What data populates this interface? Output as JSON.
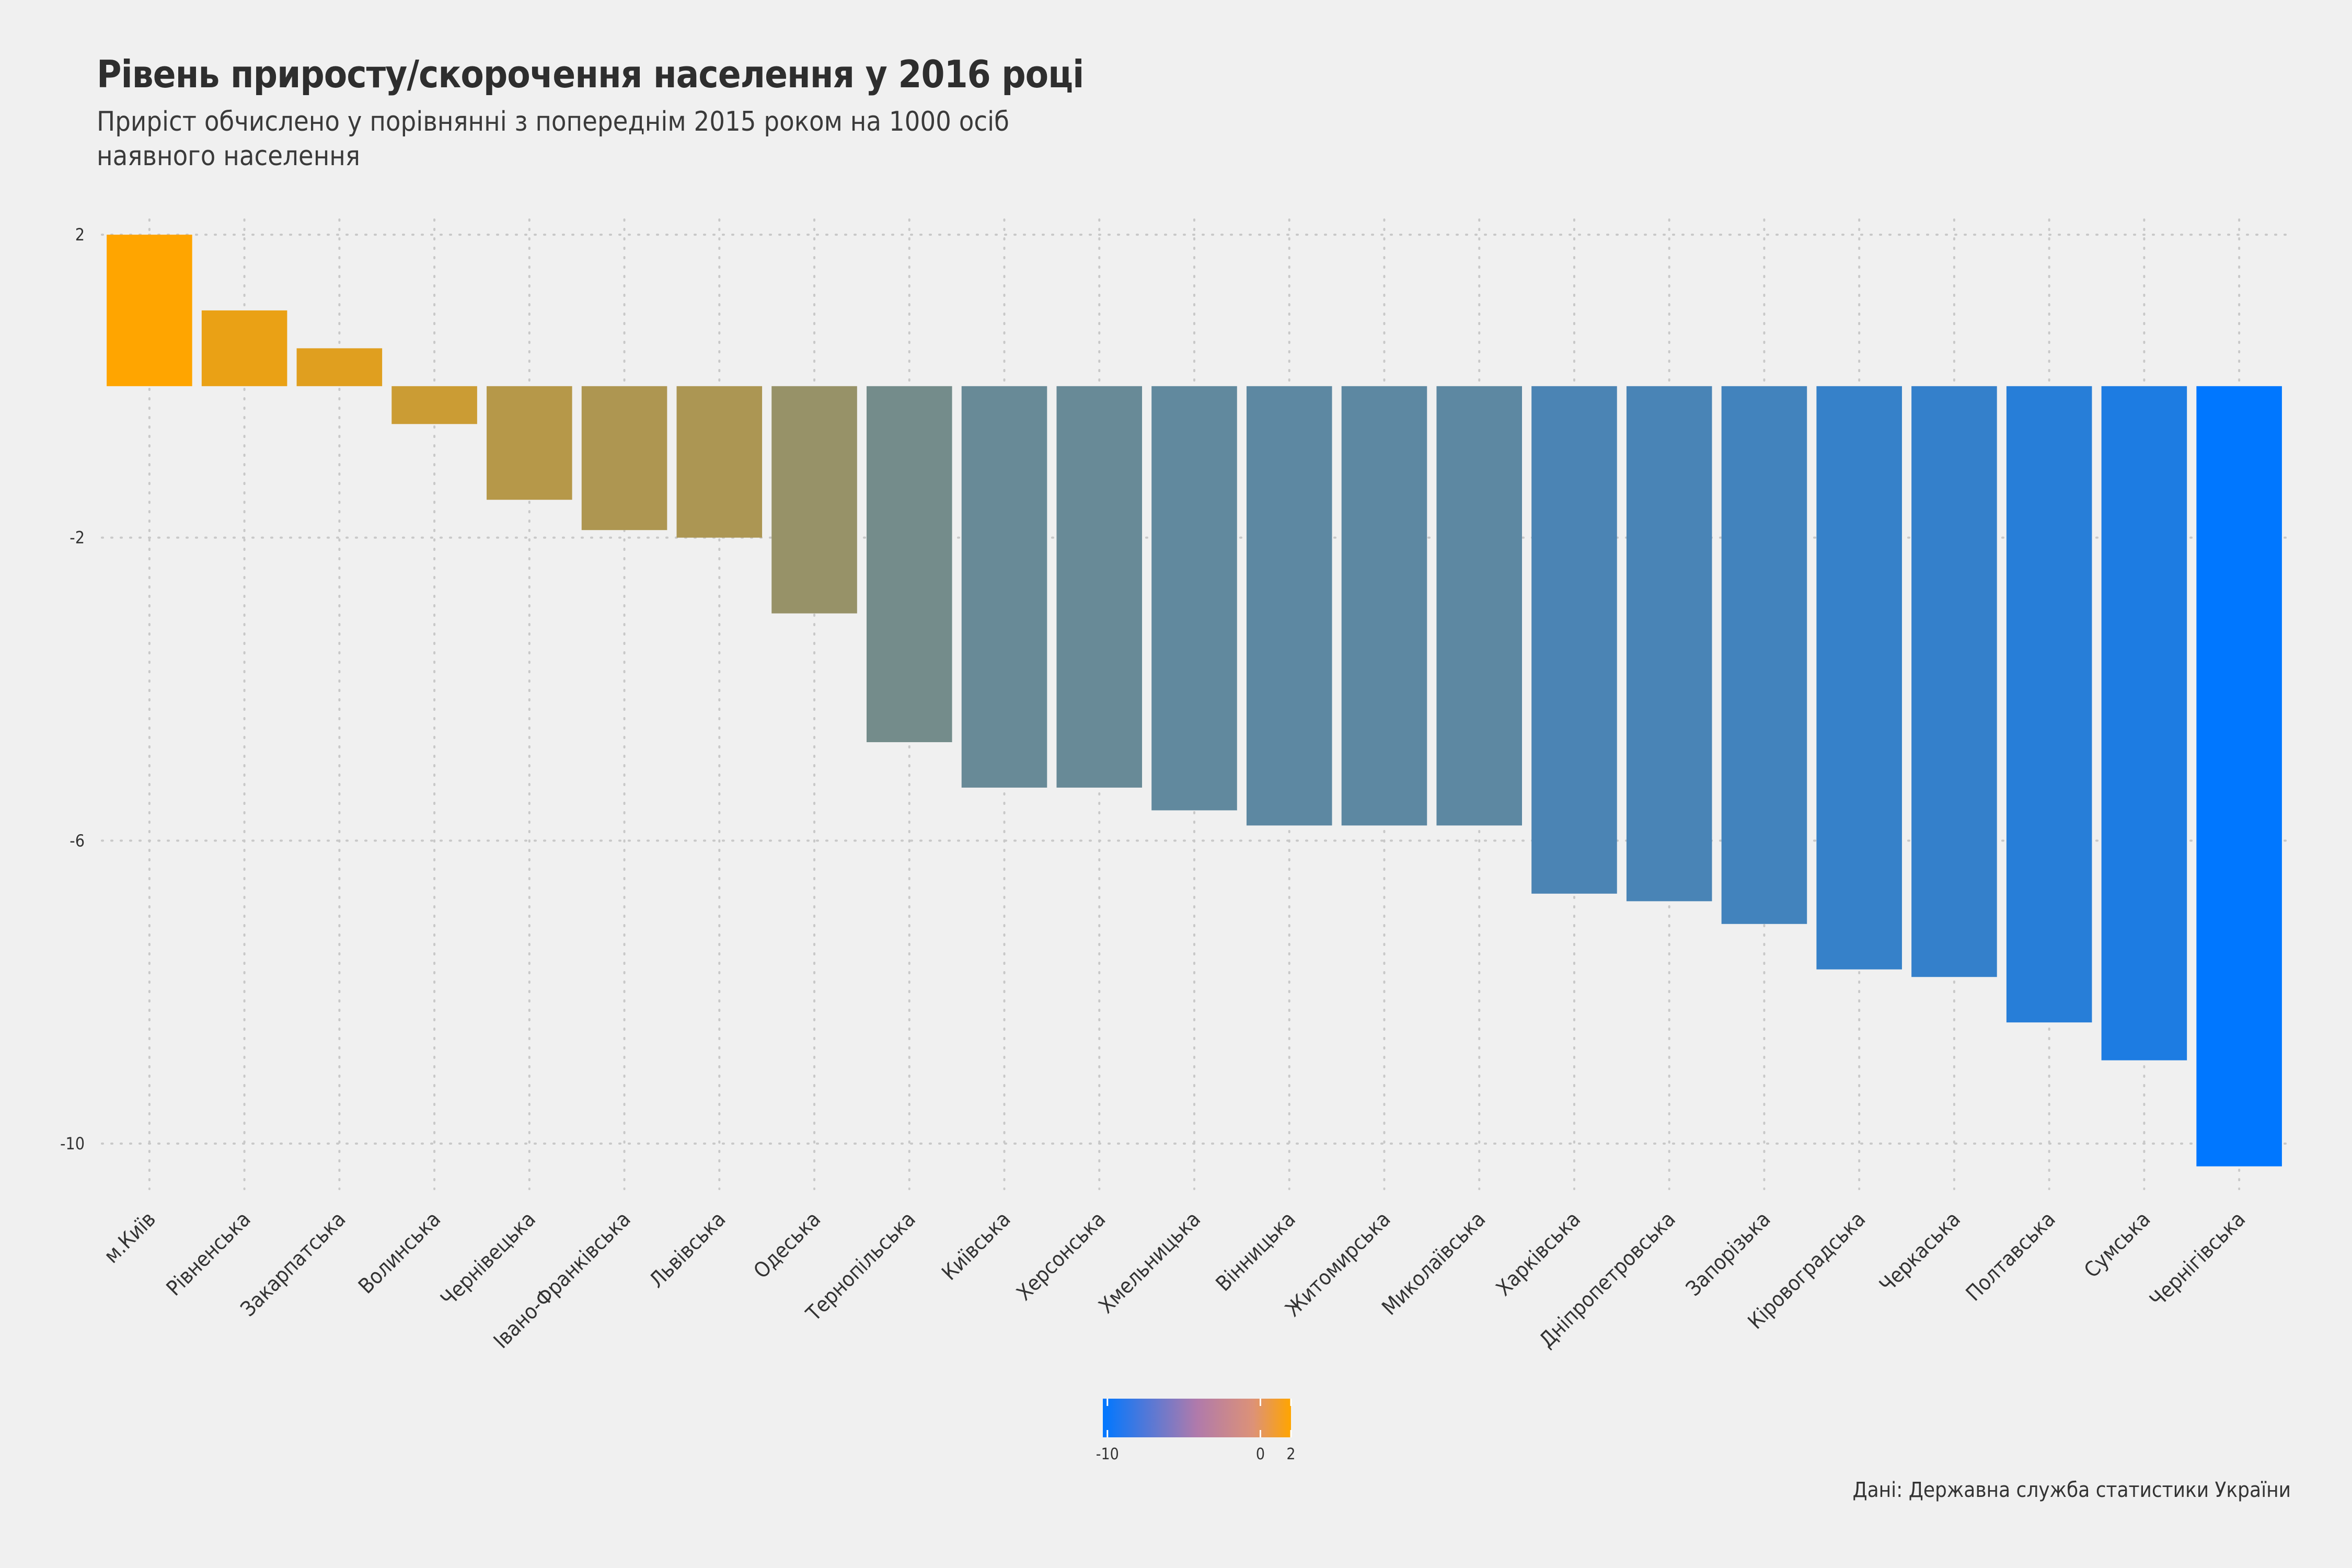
{
  "header": {
    "title": "Рівень приросту/скорочення населення у 2016 році",
    "subtitle": "Приріст обчислено у порівнянні з попереднім 2015 роком на 1000 осіб наявного населення"
  },
  "footer": {
    "source": "Дані: Державна служба статистики України"
  },
  "colors": {
    "background": "#f0f0f0",
    "low": "#0077ff",
    "high": "#ffa500",
    "grid": "#c8c8c8"
  },
  "chart_data": {
    "type": "bar",
    "title": "Рівень приросту/скорочення населення у 2016 році",
    "xlabel": "",
    "ylabel": "",
    "ylim": [
      -10.6,
      2.2
    ],
    "yticks": [
      2,
      -2,
      -6,
      -10
    ],
    "grid": true,
    "categories": [
      "м.Київ",
      "Рівненська",
      "Закарпатська",
      "Волинська",
      "Чернівецька",
      "Івано-Франківська",
      "Львівська",
      "Одеська",
      "Тернопільська",
      "Київська",
      "Херсонська",
      "Хмельницька",
      "Вінницька",
      "Житомирська",
      "Миколаївська",
      "Харківська",
      "Дніпропетровська",
      "Запорізька",
      "Кіровоградська",
      "Черкаська",
      "Полтавська",
      "Сумська",
      "Чернігівська"
    ],
    "values": [
      2.0,
      1.0,
      0.5,
      -0.5,
      -1.5,
      -1.9,
      -2.0,
      -3.0,
      -4.7,
      -5.3,
      -5.3,
      -5.6,
      -5.8,
      -5.8,
      -5.8,
      -6.7,
      -6.8,
      -7.1,
      -7.7,
      -7.8,
      -8.4,
      -8.9,
      -10.3
    ],
    "legend": {
      "position": "bottom",
      "min": -10.3,
      "max": 2.0,
      "ticks": [
        -10,
        0,
        2
      ]
    }
  }
}
